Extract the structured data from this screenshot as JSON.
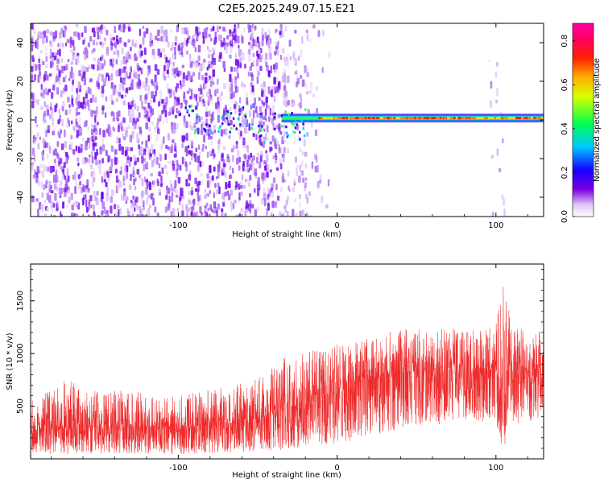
{
  "title": "C2E5.2025.249.07.15.E21",
  "colors": {
    "snr_line": "#ee2a2a",
    "spectrogram_low": "#6a00e8",
    "axis": "#000000"
  },
  "chart_data": [
    {
      "type": "heatmap",
      "name": "spectrogram",
      "xlabel": "Height of straight line (km)",
      "ylabel": "Frequency (Hz)",
      "xlim": [
        -193,
        130
      ],
      "ylim": [
        -50,
        50
      ],
      "xticks": [
        -100,
        0,
        100
      ],
      "xtick_labels": [
        "-100",
        "0",
        "100"
      ],
      "yticks": [
        -40,
        -20,
        0,
        20,
        40
      ],
      "ytick_labels": [
        "-40",
        "-20",
        "0",
        "20",
        "40"
      ],
      "colorbar": {
        "label": "Normalized spectral amplitude",
        "range": [
          0,
          0.88
        ],
        "ticks": [
          0.0,
          0.2,
          0.4,
          0.6,
          0.8
        ],
        "tick_labels": [
          "0.0",
          "0.2",
          "0.4",
          "0.6",
          "0.8"
        ],
        "colormap": "rainbow (white-purple-blue-cyan-green-yellow-red-magenta)"
      },
      "features": [
        {
          "description": "broadband noise",
          "x_range": [
            -193,
            -35
          ],
          "freq_range": [
            -50,
            50
          ]
        },
        {
          "description": "narrow signal band",
          "x_range": [
            -35,
            130
          ],
          "center_freq": 1
        }
      ]
    },
    {
      "type": "line",
      "name": "snr",
      "xlabel": "Height of straight line (km)",
      "ylabel": "SNR (10 * v/v)",
      "xlim": [
        -193,
        130
      ],
      "ylim": [
        0,
        1850
      ],
      "xticks": [
        -100,
        0,
        100
      ],
      "xtick_labels": [
        "-100",
        "0",
        "100"
      ],
      "yticks": [
        500,
        1000,
        1500
      ],
      "ytick_labels": [
        "500",
        "1000",
        "1500"
      ],
      "series": [
        {
          "name": "SNR",
          "x": [
            -190,
            -170,
            -150,
            -130,
            -110,
            -90,
            -70,
            -50,
            -30,
            -10,
            10,
            30,
            50,
            70,
            90,
            100,
            104,
            110,
            120,
            130
          ],
          "mean": [
            280,
            290,
            300,
            310,
            300,
            310,
            330,
            380,
            480,
            550,
            700,
            800,
            830,
            840,
            810,
            860,
            600,
            780,
            830,
            860
          ],
          "upper": [
            560,
            760,
            640,
            660,
            580,
            640,
            680,
            760,
            1000,
            1050,
            1120,
            1200,
            1250,
            1240,
            1220,
            1280,
            1800,
            1250,
            1230,
            1240
          ],
          "lower": [
            40,
            40,
            50,
            50,
            40,
            40,
            60,
            70,
            90,
            120,
            170,
            250,
            320,
            330,
            320,
            380,
            50,
            320,
            350,
            400
          ]
        }
      ]
    }
  ]
}
